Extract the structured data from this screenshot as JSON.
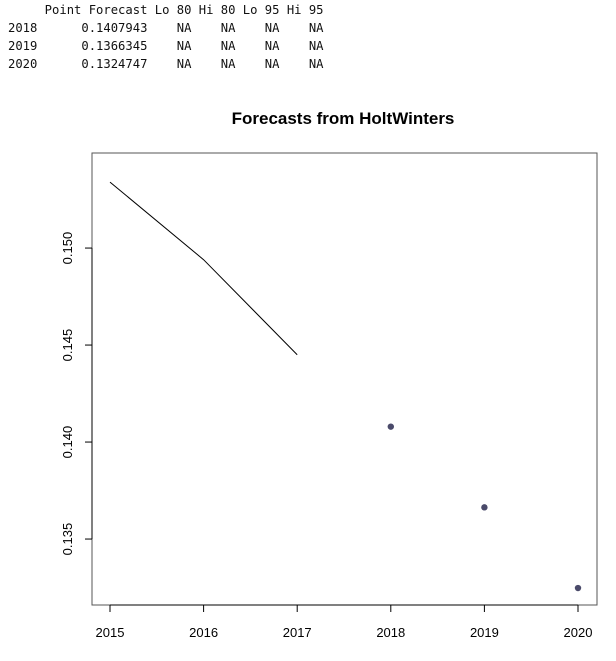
{
  "console": {
    "header": "     Point Forecast Lo 80 Hi 80 Lo 95 Hi 95",
    "rows": [
      "2018      0.1407943    NA    NA    NA    NA",
      "2019      0.1366345    NA    NA    NA    NA",
      "2020      0.1324747    NA    NA    NA    NA"
    ]
  },
  "chart_data": {
    "type": "line",
    "title": "Forecasts from HoltWinters",
    "xlabel": "",
    "ylabel": "",
    "xlim": [
      2015,
      2020
    ],
    "ylim": [
      0.1316,
      0.1549
    ],
    "x_ticks": [
      "2015",
      "2016",
      "2017",
      "2018",
      "2019",
      "2020"
    ],
    "y_ticks": [
      "0.135",
      "0.140",
      "0.145",
      "0.150"
    ],
    "grid": false,
    "series": [
      {
        "kind": "line",
        "color": "#000000",
        "x": [
          2015,
          2016,
          2017
        ],
        "y": [
          0.1534,
          0.1494,
          0.1445
        ]
      },
      {
        "kind": "points",
        "color": "#4a4a6a",
        "x": [
          2018,
          2019,
          2020
        ],
        "y": [
          0.1407943,
          0.1366345,
          0.1324747
        ]
      }
    ]
  }
}
